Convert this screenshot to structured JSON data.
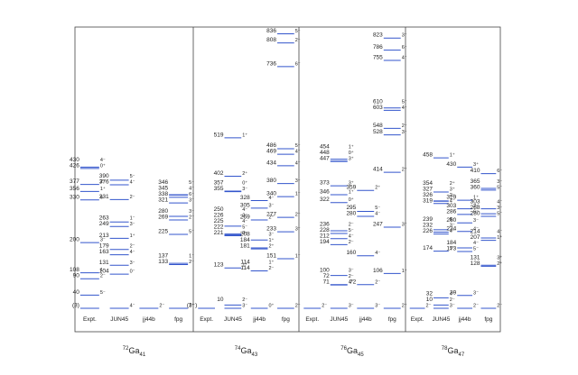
{
  "columns": [
    "Expt.",
    "JUN45",
    "jj44b",
    "fpg"
  ],
  "panels": [
    {
      "nucleus": {
        "mass": "72",
        "element": "Ga",
        "neutrons": "41"
      },
      "expt": [
        {
          "e": "0",
          "label": "(3)",
          "jp": "",
          "color": "#3355cc"
        },
        {
          "e": "40",
          "label": "40",
          "jp": "5⁻",
          "color": "#3355cc"
        },
        {
          "e": "90",
          "label": "90",
          "jp": "2⁻",
          "color": "#3355cc"
        },
        {
          "e": "108",
          "label": "108",
          "jp": "1⁻",
          "color": "#3355cc"
        },
        {
          "e": "200",
          "label": "200",
          "jp": "3⁻",
          "color": "#3355cc"
        },
        {
          "e": "330",
          "label": "330",
          "jp": "6⁻",
          "color": "#3355cc"
        },
        {
          "e": "356",
          "label": "356",
          "jp": "1⁺",
          "color": "#3355cc"
        },
        {
          "e": "377",
          "label": "377",
          "jp": "2⁻",
          "color": "#3355cc"
        },
        {
          "e": "426",
          "label": "426",
          "jp": "0⁺",
          "color": "#3355cc"
        },
        {
          "e": "430",
          "label": "430",
          "jp": "4⁻",
          "color": "#3355cc"
        }
      ],
      "jun45": [
        {
          "e": "0",
          "label": "",
          "jp": "4⁻",
          "color": "#3355cc"
        },
        {
          "e": "104",
          "label": "104",
          "jp": "0⁻",
          "color": "#3355cc"
        },
        {
          "e": "131",
          "label": "131",
          "jp": "3⁻",
          "color": "#3355cc"
        },
        {
          "e": "163",
          "label": "163",
          "jp": "4⁻",
          "color": "#3355cc"
        },
        {
          "e": "179",
          "label": "179",
          "jp": "2⁻",
          "color": "#3355cc"
        },
        {
          "e": "213",
          "label": "213",
          "jp": "1⁺",
          "color": "#3355cc"
        },
        {
          "e": "249",
          "label": "249",
          "jp": "3⁻",
          "color": "#3355cc"
        },
        {
          "e": "263",
          "label": "263",
          "jp": "1⁻",
          "color": "#3355cc"
        },
        {
          "e": "331",
          "label": "331",
          "jp": "2⁻",
          "color": "#3355cc"
        },
        {
          "e": "376",
          "label": "376",
          "jp": "4⁻",
          "color": "#3355cc"
        },
        {
          "e": "390",
          "label": "390",
          "jp": "5⁻",
          "color": "#3355cc"
        }
      ],
      "jj44b": [
        {
          "e": "0",
          "label": "",
          "jp": "2⁻",
          "color": "#3355cc"
        }
      ],
      "fpg": [
        {
          "e": "0",
          "label": "",
          "jp": "1⁺",
          "color": "#3355cc"
        },
        {
          "e": "133",
          "label": "133",
          "jp": "2⁻",
          "color": "#3355cc"
        },
        {
          "e": "137",
          "label": "137",
          "jp": "1⁻",
          "color": "#3355cc"
        },
        {
          "e": "225",
          "label": "225",
          "jp": "5⁻",
          "color": "#3355cc"
        },
        {
          "e": "269",
          "label": "269",
          "jp": "2⁻",
          "color": "#3355cc"
        },
        {
          "e": "280",
          "label": "280",
          "jp": "3⁻",
          "color": "#3355cc"
        },
        {
          "e": "321",
          "label": "321",
          "jp": "3⁻",
          "color": "#3355cc"
        },
        {
          "e": "338",
          "label": "338",
          "jp": "6⁻",
          "color": "#3355cc"
        },
        {
          "e": "345",
          "label": "345",
          "jp": "4⁻",
          "color": "#3355cc"
        },
        {
          "e": "346",
          "label": "346",
          "jp": "5⁻",
          "color": "#3355cc"
        }
      ]
    },
    {
      "nucleus": {
        "mass": "74",
        "element": "Ga",
        "neutrons": "43"
      },
      "expt": [
        {
          "e": "0",
          "label": "(3⁻)",
          "jp": "",
          "color": "#3355cc"
        }
      ],
      "jun45": [
        {
          "e": "10",
          "label": "10",
          "jp": "2⁻",
          "color": "#3355cc"
        },
        {
          "e": "0",
          "label": "",
          "jp": "3⁻",
          "color": "#3355cc"
        },
        {
          "e": "123",
          "label": "123",
          "jp": "1⁺",
          "color": "#3355cc"
        },
        {
          "e": "221",
          "label": "221",
          "jp": "3⁻",
          "color": "#3355cc"
        },
        {
          "e": "222",
          "label": "222",
          "jp": "5⁻",
          "color": "#3355cc"
        },
        {
          "e": "225",
          "label": "225",
          "jp": "4⁻",
          "color": "#3355cc"
        },
        {
          "e": "226",
          "label": "226",
          "jp": "2⁻",
          "color": "#3355cc"
        },
        {
          "e": "250",
          "label": "250",
          "jp": "4⁻",
          "color": "#3355cc"
        },
        {
          "e": "355",
          "label": "355",
          "jp": "3⁻",
          "color": "#3355cc"
        },
        {
          "e": "357",
          "label": "357",
          "jp": "0⁺",
          "color": "#3355cc"
        },
        {
          "e": "402",
          "label": "402",
          "jp": "2⁺",
          "color": "#3355cc"
        },
        {
          "e": "519",
          "label": "519",
          "jp": "1⁺",
          "color": "#3355cc"
        }
      ],
      "jj44b": [
        {
          "e": "0",
          "label": "",
          "jp": "0⁺",
          "color": "#3355cc"
        },
        {
          "e": "114",
          "label": "114",
          "jp": "2⁻",
          "color": "#3355cc"
        },
        {
          "e": "114",
          "label": "114",
          "jp": "1⁺",
          "color": "#3355cc"
        },
        {
          "e": "181",
          "label": "181",
          "jp": "2⁺",
          "color": "#3355cc"
        },
        {
          "e": "184",
          "label": "184",
          "jp": "1⁺",
          "color": "#3355cc"
        },
        {
          "e": "208",
          "label": "208",
          "jp": "3⁻",
          "color": "#3355cc"
        },
        {
          "e": "269",
          "label": "269",
          "jp": "2⁺",
          "color": "#3355cc"
        },
        {
          "e": "305",
          "label": "305",
          "jp": "3⁻",
          "color": "#3355cc"
        },
        {
          "e": "328",
          "label": "328",
          "jp": "4⁻",
          "color": "#3355cc"
        }
      ],
      "fpg": [
        {
          "e": "0",
          "label": "",
          "jp": "2⁻",
          "color": "#3355cc"
        },
        {
          "e": "151",
          "label": "151",
          "jp": "1⁻",
          "color": "#3355cc"
        },
        {
          "e": "233",
          "label": "233",
          "jp": "3⁻",
          "color": "#3355cc"
        },
        {
          "e": "277",
          "label": "277",
          "jp": "2⁻",
          "color": "#3355cc"
        },
        {
          "e": "340",
          "label": "340",
          "jp": "1⁻",
          "color": "#3355cc"
        },
        {
          "e": "380",
          "label": "380",
          "jp": "3⁻",
          "color": "#3355cc"
        },
        {
          "e": "434",
          "label": "434",
          "jp": "4⁻",
          "color": "#3355cc"
        },
        {
          "e": "469",
          "label": "469",
          "jp": "4⁻",
          "color": "#3355cc"
        },
        {
          "e": "486",
          "label": "486",
          "jp": "5⁻",
          "color": "#3355cc"
        },
        {
          "e": "736",
          "label": "736",
          "jp": "6⁻",
          "color": "#3355cc"
        },
        {
          "e": "808",
          "label": "808",
          "jp": "2⁻",
          "color": "#3355cc"
        },
        {
          "e": "836",
          "label": "836",
          "jp": "5⁻",
          "color": "#3355cc"
        }
      ]
    },
    {
      "nucleus": {
        "mass": "76",
        "element": "Ga",
        "neutrons": "45"
      },
      "expt": [
        {
          "e": "0",
          "label": "",
          "jp": "2⁻",
          "color": "#3355cc"
        }
      ],
      "jun45": [
        {
          "e": "0",
          "label": "",
          "jp": "3⁻",
          "color": "#3355cc"
        },
        {
          "e": "71",
          "label": "71",
          "jp": "4⁻",
          "color": "#3355cc"
        },
        {
          "e": "72",
          "label": "72",
          "jp": "2⁻",
          "color": "#3355cc"
        },
        {
          "e": "100",
          "label": "100",
          "jp": "3⁻",
          "color": "#3355cc"
        },
        {
          "e": "194",
          "label": "194",
          "jp": "2⁻",
          "color": "#3355cc"
        },
        {
          "e": "212",
          "label": "212",
          "jp": "4⁻",
          "color": "#3355cc"
        },
        {
          "e": "228",
          "label": "228",
          "jp": "5⁻",
          "color": "#3355cc"
        },
        {
          "e": "236",
          "label": "236",
          "jp": "2⁻",
          "color": "#3355cc"
        },
        {
          "e": "322",
          "label": "322",
          "jp": "0⁺",
          "color": "#3355cc"
        },
        {
          "e": "346",
          "label": "346",
          "jp": "1⁺",
          "color": "#3355cc"
        },
        {
          "e": "373",
          "label": "373",
          "jp": "3⁺",
          "color": "#3355cc"
        },
        {
          "e": "447",
          "label": "447",
          "jp": "3⁺",
          "color": "#3355cc"
        },
        {
          "e": "448",
          "label": "448",
          "jp": "0⁺",
          "color": "#3355cc"
        },
        {
          "e": "454",
          "label": "454",
          "jp": "1⁺",
          "color": "#3355cc"
        }
      ],
      "jj44b": [
        {
          "e": "0",
          "label": "",
          "jp": "3⁻",
          "color": "#3355cc"
        },
        {
          "e": "72",
          "label": "72",
          "jp": "2⁻",
          "color": "#3355cc"
        },
        {
          "e": "160",
          "label": "160",
          "jp": "4⁻",
          "color": "#3355cc"
        },
        {
          "e": "280",
          "label": "280",
          "jp": "4⁻",
          "color": "#3355cc"
        },
        {
          "e": "295",
          "label": "295",
          "jp": "5⁻",
          "color": "#3355cc"
        },
        {
          "e": "359",
          "label": "359",
          "jp": "2⁺",
          "color": "#3355cc"
        }
      ],
      "fpg": [
        {
          "e": "0",
          "label": "",
          "jp": "2⁺",
          "color": "#3355cc"
        },
        {
          "e": "106",
          "label": "106",
          "jp": "1⁺",
          "color": "#3355cc"
        },
        {
          "e": "247",
          "label": "247",
          "jp": "3⁻",
          "color": "#3355cc"
        },
        {
          "e": "414",
          "label": "414",
          "jp": "2⁺",
          "color": "#3355cc"
        },
        {
          "e": "528",
          "label": "528",
          "jp": "3⁻",
          "color": "#3355cc"
        },
        {
          "e": "548",
          "label": "548",
          "jp": "2⁻",
          "color": "#3355cc"
        },
        {
          "e": "603",
          "label": "603",
          "jp": "4⁻",
          "color": "#3355cc"
        },
        {
          "e": "610",
          "label": "610",
          "jp": "5⁻",
          "color": "#3355cc"
        },
        {
          "e": "755",
          "label": "755",
          "jp": "4⁻",
          "color": "#3355cc"
        },
        {
          "e": "786",
          "label": "786",
          "jp": "6⁻",
          "color": "#3355cc"
        },
        {
          "e": "823",
          "label": "823",
          "jp": "3⁻",
          "color": "#3355cc"
        }
      ]
    },
    {
      "nucleus": {
        "mass": "78",
        "element": "Ga",
        "neutrons": "47"
      },
      "expt": [
        {
          "e": "0",
          "label": "",
          "jp": "2⁻",
          "color": "#3355cc"
        }
      ],
      "jun45": [
        {
          "e": "0",
          "label": "",
          "jp": "3⁻",
          "color": "#3355cc"
        },
        {
          "e": "10",
          "label": "10",
          "jp": "2⁻",
          "color": "#3355cc"
        },
        {
          "e": "32",
          "label": "32",
          "jp": "4⁻",
          "color": "#3355cc"
        },
        {
          "e": "174",
          "label": "174",
          "jp": "5⁻",
          "color": "#3355cc"
        },
        {
          "e": "226",
          "label": "226",
          "jp": "4⁻",
          "color": "#3355cc"
        },
        {
          "e": "232",
          "label": "232",
          "jp": "3⁻",
          "color": "#3355cc"
        },
        {
          "e": "239",
          "label": "239",
          "jp": "5⁻",
          "color": "#3355cc"
        },
        {
          "e": "319",
          "label": "319",
          "jp": "4⁻",
          "color": "#3355cc"
        },
        {
          "e": "326",
          "label": "326",
          "jp": "2⁻",
          "color": "#3355cc"
        },
        {
          "e": "327",
          "label": "327",
          "jp": "3⁺",
          "color": "#3355cc"
        },
        {
          "e": "354",
          "label": "354",
          "jp": "2⁺",
          "color": "#3355cc"
        },
        {
          "e": "458",
          "label": "458",
          "jp": "1⁺",
          "color": "#3355cc"
        }
      ],
      "jj44b": [
        {
          "e": "0",
          "label": "",
          "jp": "2⁻",
          "color": "#3355cc"
        },
        {
          "e": "39",
          "label": "39",
          "jp": "3⁻",
          "color": "#3355cc"
        },
        {
          "e": "173",
          "label": "173",
          "jp": "5⁻",
          "color": "#3355cc"
        },
        {
          "e": "184",
          "label": "184",
          "jp": "4⁻",
          "color": "#3355cc"
        },
        {
          "e": "234",
          "label": "234",
          "jp": "4⁻",
          "color": "#3355cc"
        },
        {
          "e": "260",
          "label": "260",
          "jp": "3⁻",
          "color": "#3355cc"
        },
        {
          "e": "286",
          "label": "286",
          "jp": "6⁻",
          "color": "#3355cc"
        },
        {
          "e": "303",
          "label": "303",
          "jp": "2⁻",
          "color": "#3355cc"
        },
        {
          "e": "329",
          "label": "329",
          "jp": "1⁺",
          "color": "#3355cc"
        },
        {
          "e": "430",
          "label": "430",
          "jp": "3⁺",
          "color": "#3355cc"
        }
      ],
      "fpg": [
        {
          "e": "0",
          "label": "",
          "jp": "2⁻",
          "color": "#3355cc"
        },
        {
          "e": "128",
          "label": "128",
          "jp": "2⁺",
          "color": "#3355cc"
        },
        {
          "e": "131",
          "label": "131",
          "jp": "3⁺",
          "color": "#3355cc"
        },
        {
          "e": "207",
          "label": "207",
          "jp": "1⁺",
          "color": "#3355cc"
        },
        {
          "e": "214",
          "label": "214",
          "jp": "4⁻",
          "color": "#3355cc"
        },
        {
          "e": "280",
          "label": "280",
          "jp": "5⁻",
          "color": "#3355cc"
        },
        {
          "e": "288",
          "label": "288",
          "jp": "3⁻",
          "color": "#3355cc"
        },
        {
          "e": "303",
          "label": "303",
          "jp": "4⁻",
          "color": "#3355cc"
        },
        {
          "e": "360",
          "label": "360",
          "jp": "5⁻",
          "color": "#3355cc"
        },
        {
          "e": "365",
          "label": "365",
          "jp": "3⁻",
          "color": "#3355cc"
        },
        {
          "e": "410",
          "label": "410",
          "jp": "6⁻",
          "color": "#3355cc"
        }
      ]
    }
  ]
}
